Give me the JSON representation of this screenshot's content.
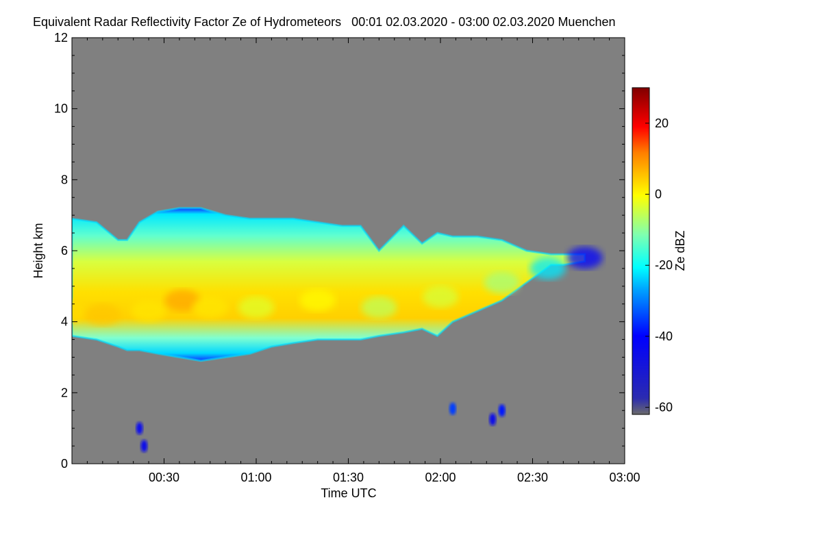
{
  "chart_data": {
    "type": "heatmap",
    "title": "Equivalent Radar Reflectivity Factor Ze of Hydrometeors   00:01 02.03.2020 - 03:00 02.03.2020 Muenchen",
    "xlabel": "Time UTC",
    "ylabel": "Height km",
    "xlim_minutes": [
      0,
      180
    ],
    "ylim": [
      0,
      12
    ],
    "x_ticks": [
      {
        "minutes": 30,
        "label": "00:30"
      },
      {
        "minutes": 60,
        "label": "01:00"
      },
      {
        "minutes": 90,
        "label": "01:30"
      },
      {
        "minutes": 120,
        "label": "02:00"
      },
      {
        "minutes": 150,
        "label": "02:30"
      },
      {
        "minutes": 180,
        "label": "03:00"
      }
    ],
    "y_ticks": [
      {
        "value": 0,
        "label": "0"
      },
      {
        "value": 2,
        "label": "2"
      },
      {
        "value": 4,
        "label": "4"
      },
      {
        "value": 6,
        "label": "6"
      },
      {
        "value": 8,
        "label": "8"
      },
      {
        "value": 10,
        "label": "10"
      },
      {
        "value": 12,
        "label": "12"
      }
    ],
    "colorbar": {
      "label": "Ze dBZ",
      "range": [
        -62,
        30
      ],
      "ticks": [
        {
          "value": 20,
          "label": "20"
        },
        {
          "value": 0,
          "label": "0"
        },
        {
          "value": -20,
          "label": "-20"
        },
        {
          "value": -40,
          "label": "-40"
        },
        {
          "value": -60,
          "label": "-60"
        }
      ]
    },
    "background_color": "#808080",
    "cloud_profile_minutes_km": [
      {
        "t": 0,
        "base": 3.6,
        "top": 6.9
      },
      {
        "t": 8,
        "base": 3.5,
        "top": 6.8
      },
      {
        "t": 15,
        "base": 3.3,
        "top": 6.3
      },
      {
        "t": 18,
        "base": 3.2,
        "top": 6.3
      },
      {
        "t": 22,
        "base": 3.2,
        "top": 6.8
      },
      {
        "t": 28,
        "base": 3.1,
        "top": 7.1
      },
      {
        "t": 35,
        "base": 3.0,
        "top": 7.2
      },
      {
        "t": 42,
        "base": 2.9,
        "top": 7.2
      },
      {
        "t": 50,
        "base": 3.0,
        "top": 7.0
      },
      {
        "t": 58,
        "base": 3.1,
        "top": 6.9
      },
      {
        "t": 65,
        "base": 3.3,
        "top": 6.9
      },
      {
        "t": 72,
        "base": 3.4,
        "top": 6.9
      },
      {
        "t": 80,
        "base": 3.5,
        "top": 6.8
      },
      {
        "t": 88,
        "base": 3.5,
        "top": 6.7
      },
      {
        "t": 94,
        "base": 3.5,
        "top": 6.7
      },
      {
        "t": 100,
        "base": 3.6,
        "top": 6.0
      },
      {
        "t": 108,
        "base": 3.7,
        "top": 6.7
      },
      {
        "t": 114,
        "base": 3.8,
        "top": 6.2
      },
      {
        "t": 119,
        "base": 3.6,
        "top": 6.5
      },
      {
        "t": 124,
        "base": 4.0,
        "top": 6.4
      },
      {
        "t": 132,
        "base": 4.3,
        "top": 6.4
      },
      {
        "t": 140,
        "base": 4.6,
        "top": 6.3
      },
      {
        "t": 148,
        "base": 5.1,
        "top": 6.0
      },
      {
        "t": 156,
        "base": 5.6,
        "top": 5.9
      },
      {
        "t": 160,
        "base": 5.6,
        "top": 5.9
      },
      {
        "t": 167,
        "base": 5.7,
        "top": 5.9
      }
    ],
    "core_profile_minutes_km_dbz": [
      {
        "t": 0,
        "h": 4.3,
        "dbz": 3
      },
      {
        "t": 10,
        "h": 4.2,
        "dbz": 5
      },
      {
        "t": 25,
        "h": 4.3,
        "dbz": 2
      },
      {
        "t": 36,
        "h": 4.6,
        "dbz": 8
      },
      {
        "t": 45,
        "h": 4.4,
        "dbz": 2
      },
      {
        "t": 60,
        "h": 4.4,
        "dbz": -3
      },
      {
        "t": 80,
        "h": 4.6,
        "dbz": 0
      },
      {
        "t": 100,
        "h": 4.4,
        "dbz": -6
      },
      {
        "t": 120,
        "h": 4.7,
        "dbz": -4
      },
      {
        "t": 140,
        "h": 5.1,
        "dbz": -8
      },
      {
        "t": 155,
        "h": 5.5,
        "dbz": -22
      },
      {
        "t": 167,
        "h": 5.8,
        "dbz": -40
      }
    ],
    "low_echoes_minutes_km_dbz": [
      {
        "t": 22,
        "h": 1.0,
        "dbz": -44
      },
      {
        "t": 23.5,
        "h": 0.5,
        "dbz": -45
      },
      {
        "t": 124,
        "h": 1.55,
        "dbz": -35
      },
      {
        "t": 137,
        "h": 1.25,
        "dbz": -45
      },
      {
        "t": 140,
        "h": 1.5,
        "dbz": -38
      }
    ]
  }
}
